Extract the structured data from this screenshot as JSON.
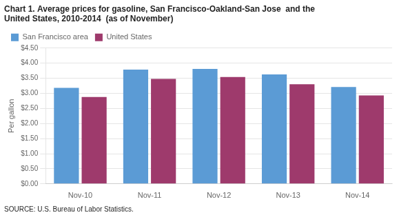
{
  "chart_data": {
    "type": "bar",
    "title": [
      "Chart 1. Average prices for gasoline, San Francisco-Oakland-San Jose  and the",
      "United States, 2010-2014  (as of November)"
    ],
    "ylabel": "Per gallon",
    "source": "SOURCE: U.S. Bureau of Labor Statistics.",
    "categories": [
      "Nov-10",
      "Nov-11",
      "Nov-12",
      "Nov-13",
      "Nov-14"
    ],
    "series": [
      {
        "name": "San Francisco area",
        "color": "#5b9bd5",
        "values": [
          3.18,
          3.79,
          3.81,
          3.63,
          3.21
        ]
      },
      {
        "name": "United States",
        "color": "#9e3a6c",
        "values": [
          2.88,
          3.48,
          3.54,
          3.3,
          2.93
        ]
      }
    ],
    "ylim": [
      0,
      4.5
    ],
    "yticks": [
      {
        "value": 0,
        "label": "$0.00"
      },
      {
        "value": 0.5,
        "label": "$0.50"
      },
      {
        "value": 1,
        "label": "$1.00"
      },
      {
        "value": 1.5,
        "label": "$1.50"
      },
      {
        "value": 2,
        "label": "$2.00"
      },
      {
        "value": 2.5,
        "label": "$2.50"
      },
      {
        "value": 3,
        "label": "$3.00"
      },
      {
        "value": 3.5,
        "label": "$3.50"
      },
      {
        "value": 4,
        "label": "$4.00"
      },
      {
        "value": 4.5,
        "label": "$4.50"
      }
    ],
    "grid": true,
    "legend": "upper left"
  }
}
